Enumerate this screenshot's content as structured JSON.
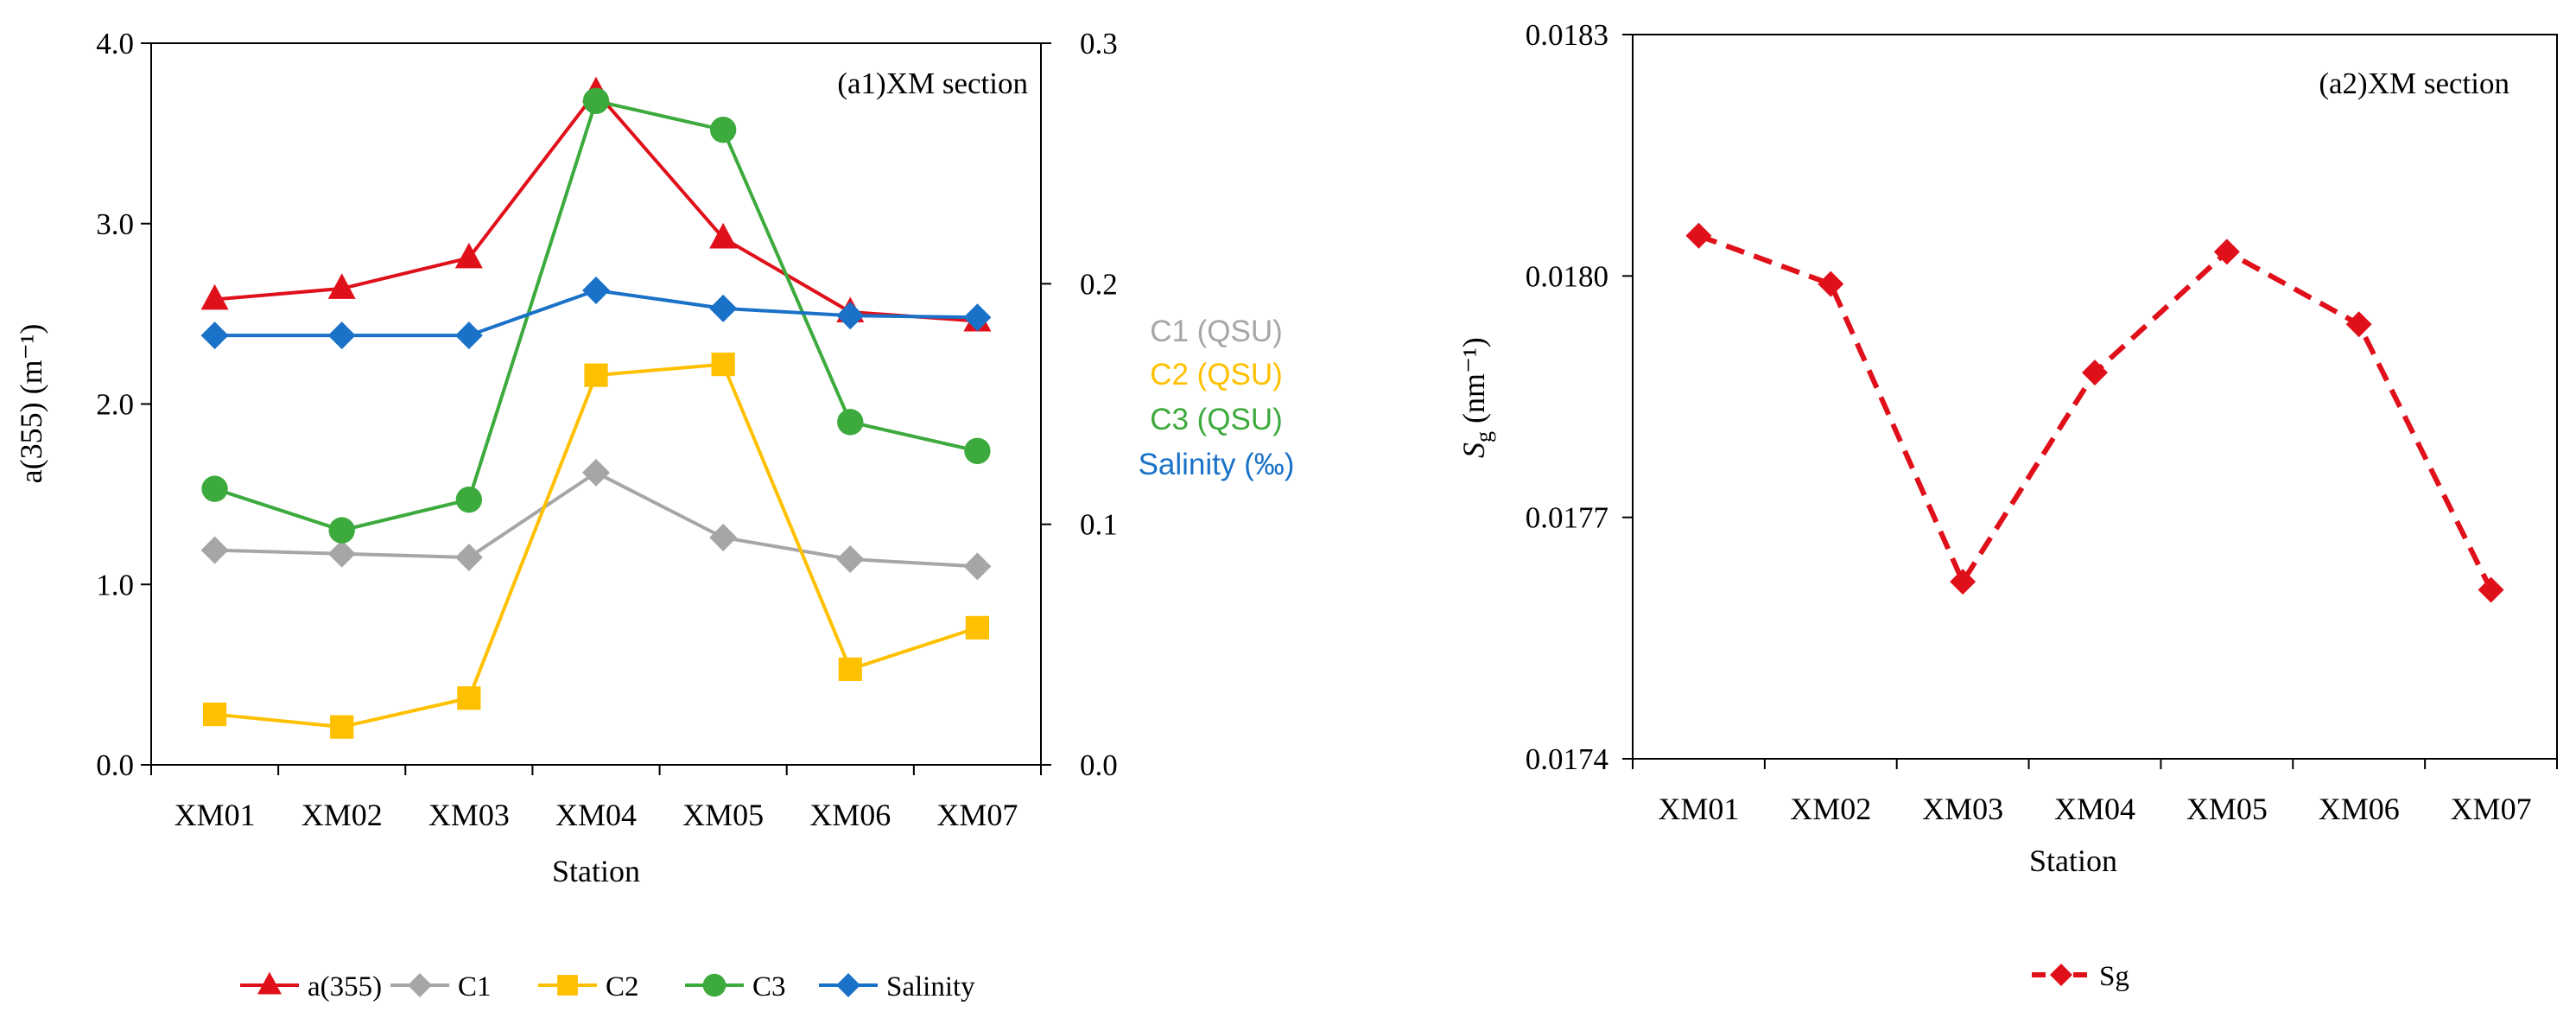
{
  "chart_data": [
    {
      "id": "a1",
      "type": "line",
      "annotation": "(a1)XM section",
      "categories": [
        "XM01",
        "XM02",
        "XM03",
        "XM04",
        "XM05",
        "XM06",
        "XM07"
      ],
      "xlabel": "Station",
      "ylabel_left": "a(355) (m⁻¹)",
      "ylim_left": [
        0,
        4.0
      ],
      "yticks_left": [
        "0.0",
        "1.0",
        "2.0",
        "3.0",
        "4.0"
      ],
      "ylim_right": [
        0,
        0.3
      ],
      "yticks_right": [
        "0.0",
        "0.1",
        "0.2",
        "0.3"
      ],
      "series": [
        {
          "name": "a(355)",
          "axis": "left",
          "color": "#e0101a",
          "marker": "triangle",
          "values": [
            2.58,
            2.64,
            2.81,
            3.73,
            2.92,
            2.51,
            2.46
          ]
        },
        {
          "name": "C1",
          "axis": "left",
          "color": "#a6a6a6",
          "marker": "diamond",
          "values": [
            1.19,
            1.17,
            1.15,
            1.62,
            1.26,
            1.14,
            1.1
          ]
        },
        {
          "name": "C2",
          "axis": "left",
          "color": "#ffc000",
          "marker": "square",
          "values": [
            0.28,
            0.21,
            0.37,
            2.16,
            2.22,
            0.53,
            0.76
          ]
        },
        {
          "name": "C3",
          "axis": "left",
          "color": "#3daa3d",
          "marker": "circle",
          "values": [
            1.53,
            1.3,
            1.47,
            3.68,
            3.52,
            1.9,
            1.74
          ]
        },
        {
          "name": "Salinity",
          "axis": "left",
          "color": "#1a72c8",
          "marker": "diamond",
          "values": [
            2.38,
            2.38,
            2.38,
            2.63,
            2.53,
            2.49,
            2.48
          ]
        }
      ],
      "right_labels": [
        {
          "text": "C1 (QSU)",
          "color": "#a6a6a6"
        },
        {
          "text": "C2 (QSU)",
          "color": "#ffc000"
        },
        {
          "text": "C3 (QSU)",
          "color": "#3daa3d"
        },
        {
          "text": "Salinity (‰)",
          "color": "#1a72c8"
        }
      ],
      "legend": [
        "a(355)",
        "C1",
        "C2",
        "C3",
        "Salinity"
      ],
      "legend_position": "bottom"
    },
    {
      "id": "a2",
      "type": "line",
      "annotation": "(a2)XM section",
      "categories": [
        "XM01",
        "XM02",
        "XM03",
        "XM04",
        "XM05",
        "XM06",
        "XM07"
      ],
      "xlabel": "Station",
      "ylabel_main": "S",
      "ylabel_sub": "g",
      "ylabel_unit": " (nm⁻¹)",
      "ylim": [
        0.0174,
        0.0183
      ],
      "yticks": [
        "0.0174",
        "0.0177",
        "0.0180",
        "0.0183"
      ],
      "series": [
        {
          "name": "Sg",
          "color": "#e0101a",
          "marker": "diamond",
          "style": "dashed",
          "values": [
            0.01805,
            0.01799,
            0.01762,
            0.01788,
            0.01803,
            0.01794,
            0.01761
          ]
        }
      ],
      "legend": [
        "Sg"
      ],
      "legend_position": "bottom"
    }
  ]
}
